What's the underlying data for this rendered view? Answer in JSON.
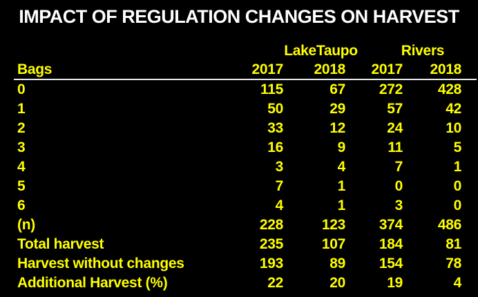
{
  "title": "IMPACT OF REGULATION CHANGES ON HARVEST",
  "colors": {
    "background": "#000000",
    "title_text": "#ffffff",
    "table_text": "#ffff00",
    "divider": "#ededed"
  },
  "table": {
    "row_header_label": "Bags",
    "group_headers": [
      {
        "label": "LakeTaupo"
      },
      {
        "label": "Rivers"
      }
    ],
    "year_headers": [
      "2017",
      "2018",
      "2017",
      "2018"
    ],
    "rows": [
      {
        "label": "0",
        "values": [
          "115",
          "67",
          "272",
          "428"
        ]
      },
      {
        "label": "1",
        "values": [
          "50",
          "29",
          "57",
          "42"
        ]
      },
      {
        "label": "2",
        "values": [
          "33",
          "12",
          "24",
          "10"
        ]
      },
      {
        "label": "3",
        "values": [
          "16",
          "9",
          "11",
          "5"
        ]
      },
      {
        "label": "4",
        "values": [
          "3",
          "4",
          "7",
          "1"
        ]
      },
      {
        "label": "5",
        "values": [
          "7",
          "1",
          "0",
          "0"
        ]
      },
      {
        "label": "6",
        "values": [
          "4",
          "1",
          "3",
          "0"
        ]
      },
      {
        "label": "(n)",
        "values": [
          "228",
          "123",
          "374",
          "486"
        ]
      },
      {
        "label": "Total harvest",
        "values": [
          "235",
          "107",
          "184",
          "81"
        ]
      },
      {
        "label": "Harvest without changes",
        "values": [
          "193",
          "89",
          "154",
          "78"
        ]
      },
      {
        "label": "Additional Harvest (%)",
        "values": [
          "22",
          "20",
          "19",
          "4"
        ]
      }
    ]
  },
  "chart_data": {
    "type": "table",
    "title": "IMPACT OF REGULATION CHANGES ON HARVEST",
    "column_groups": [
      "LakeTaupo",
      "Rivers"
    ],
    "columns": [
      "Bags",
      "LakeTaupo 2017",
      "LakeTaupo 2018",
      "Rivers 2017",
      "Rivers 2018"
    ],
    "rows": [
      [
        "0",
        115,
        67,
        272,
        428
      ],
      [
        "1",
        50,
        29,
        57,
        42
      ],
      [
        "2",
        33,
        12,
        24,
        10
      ],
      [
        "3",
        16,
        9,
        11,
        5
      ],
      [
        "4",
        3,
        4,
        7,
        1
      ],
      [
        "5",
        7,
        1,
        0,
        0
      ],
      [
        "6",
        4,
        1,
        3,
        0
      ],
      [
        "(n)",
        228,
        123,
        374,
        486
      ],
      [
        "Total harvest",
        235,
        107,
        184,
        81
      ],
      [
        "Harvest without changes",
        193,
        89,
        154,
        78
      ],
      [
        "Additional Harvest (%)",
        22,
        20,
        19,
        4
      ]
    ]
  }
}
